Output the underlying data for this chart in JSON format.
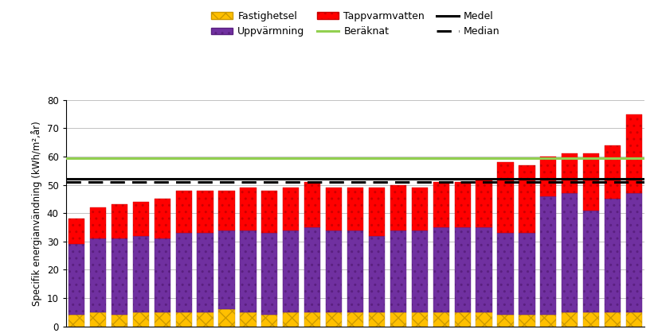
{
  "fastighetsel": [
    4,
    5,
    4,
    5,
    5,
    5,
    5,
    6,
    5,
    4,
    5,
    5,
    5,
    5,
    5,
    5,
    5,
    5,
    5,
    5,
    4,
    4,
    4,
    5,
    5,
    5,
    5
  ],
  "uppvarmning": [
    25,
    26,
    27,
    27,
    26,
    28,
    28,
    28,
    29,
    29,
    29,
    30,
    29,
    29,
    27,
    29,
    29,
    30,
    30,
    30,
    29,
    29,
    42,
    42,
    36,
    40,
    42
  ],
  "tappvarmvatten": [
    9,
    11,
    12,
    12,
    14,
    15,
    15,
    14,
    15,
    15,
    15,
    16,
    15,
    15,
    17,
    16,
    15,
    16,
    16,
    17,
    25,
    24,
    14,
    14,
    20,
    19,
    28
  ],
  "beraknat": 59.5,
  "medel": 52.2,
  "median": 51.0,
  "ylabel": "Specifik energianvändning (kWh/m²,år)",
  "ylim": [
    0,
    80
  ],
  "yticks": [
    0,
    10,
    20,
    30,
    40,
    50,
    60,
    70,
    80
  ],
  "color_fastighetsel": "#FFC000",
  "color_uppvarmning": "#7030A0",
  "color_tappvarmvatten": "#FF0000",
  "color_beraknat": "#92D050",
  "color_medel": "#000000",
  "color_median": "#000000",
  "legend_fastighetsel": "Fastighetsel",
  "legend_uppvarmning": "Uppvärmning",
  "legend_tappvarmvatten": "Tappvarmvatten",
  "legend_beraknat": "Beräknat",
  "legend_medel": "Medel",
  "legend_median": "Median"
}
